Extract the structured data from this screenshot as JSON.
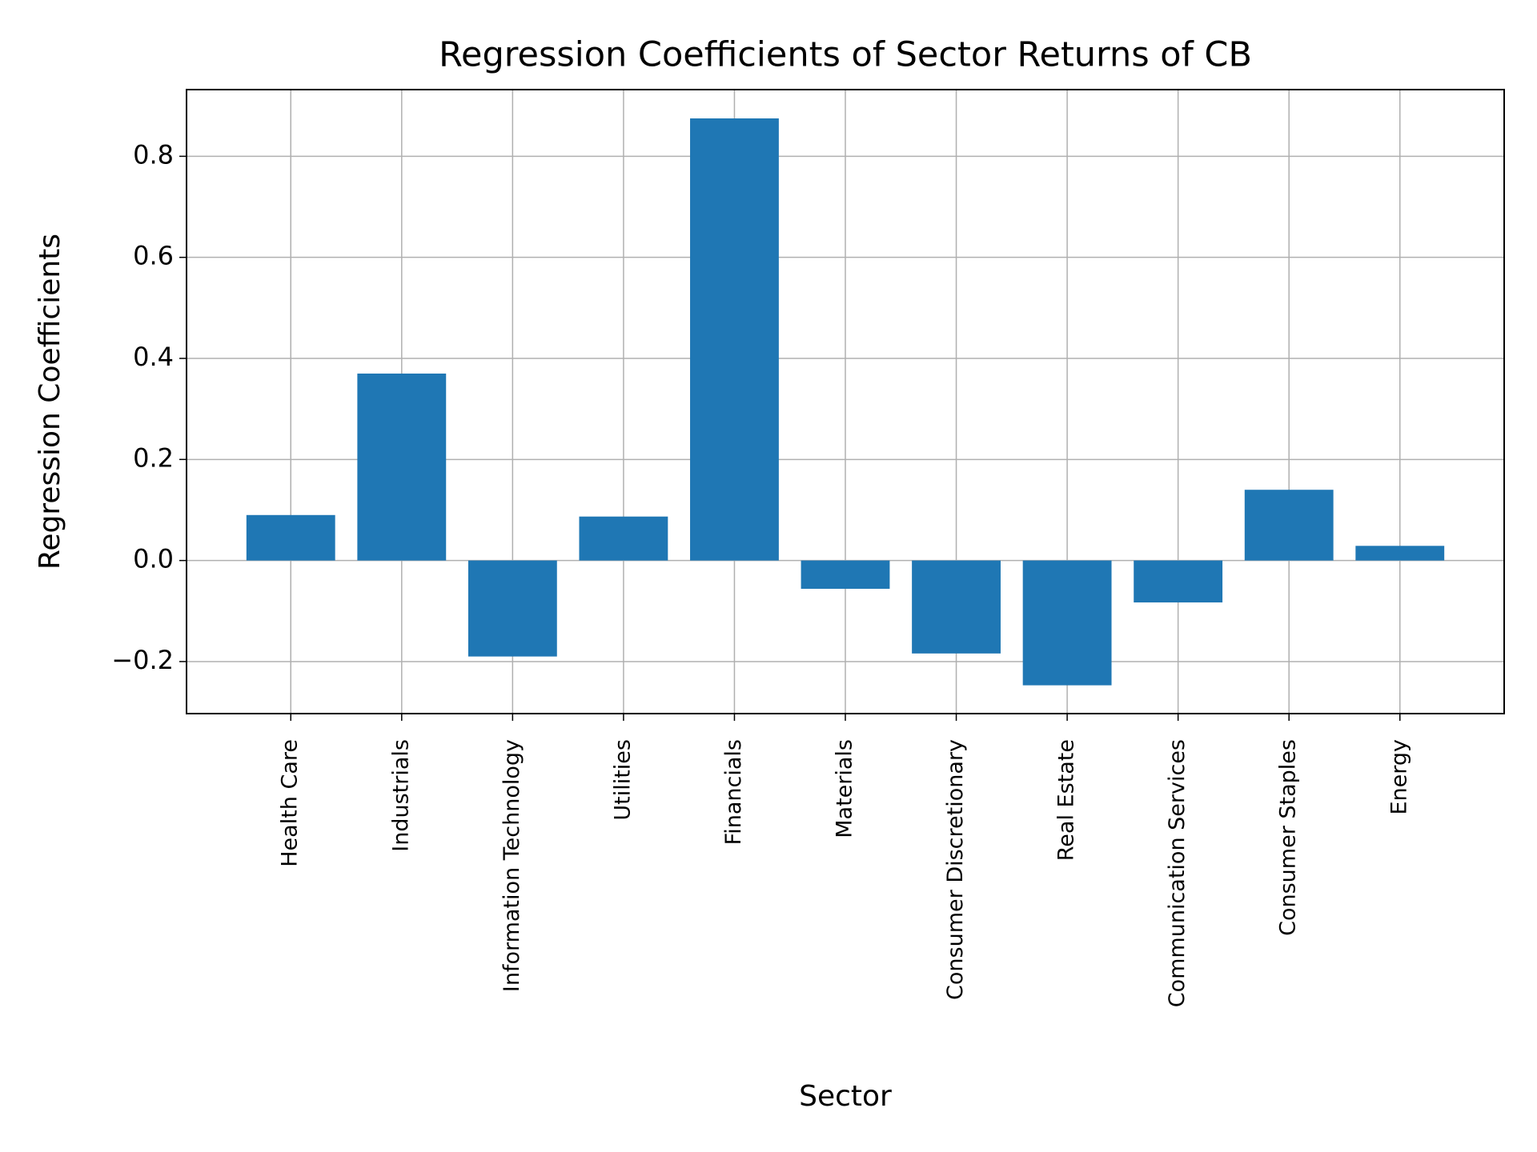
{
  "chart_data": {
    "type": "bar",
    "title": "Regression Coefficients of Sector Returns of CB",
    "x_label": "Sector",
    "y_label": "Regression Coefficients",
    "categories": [
      "Health Care",
      "Industrials",
      "Information Technology",
      "Utilities",
      "Financials",
      "Materials",
      "Consumer Discretionary",
      "Real Estate",
      "Communication Services",
      "Consumer Staples",
      "Energy"
    ],
    "values": [
      0.09,
      0.37,
      -0.19,
      0.087,
      0.875,
      -0.056,
      -0.184,
      -0.247,
      -0.083,
      0.14,
      0.029
    ],
    "color": "#1f77b4",
    "ylim": [
      -0.303,
      0.932
    ],
    "yticks": [
      {
        "value": -0.2,
        "label": "−0.2"
      },
      {
        "value": 0,
        "label": "0.0"
      },
      0.2,
      0.4,
      0.6,
      0.8
    ],
    "grid": true
  }
}
